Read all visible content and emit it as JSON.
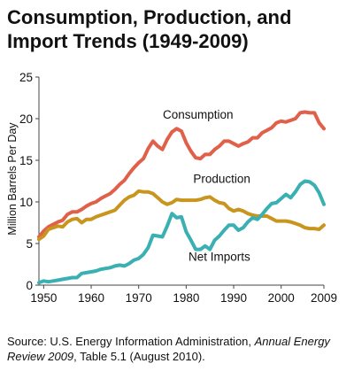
{
  "title_line1": "Consumption, Production, and",
  "title_line2": "Import Trends (1949-2009)",
  "source": {
    "prefix": "Source: U.S. Energy Information Administration, ",
    "publication": "Annual Energy Review 2009",
    "suffix": ", Table 5.1 (August 2010)."
  },
  "chart_data": {
    "type": "line",
    "title": "Consumption, Production, and Import Trends (1949-2009)",
    "xlabel": "",
    "ylabel": "Million Barrels Per Day",
    "xlim": [
      1949,
      2009
    ],
    "ylim": [
      0,
      25
    ],
    "x_ticks": [
      1950,
      1960,
      1970,
      1980,
      1990,
      2000,
      2009
    ],
    "y_ticks": [
      0,
      5,
      10,
      15,
      20,
      25
    ],
    "grid": false,
    "legend": "inline labels",
    "series": [
      {
        "name": "Consumption",
        "color": "#e0604a",
        "label_year": 1982.5,
        "label_value": 20,
        "points": [
          [
            1949,
            5.8
          ],
          [
            1950,
            6.5
          ],
          [
            1951,
            7.0
          ],
          [
            1952,
            7.3
          ],
          [
            1953,
            7.6
          ],
          [
            1954,
            7.8
          ],
          [
            1955,
            8.5
          ],
          [
            1956,
            8.8
          ],
          [
            1957,
            8.8
          ],
          [
            1958,
            9.1
          ],
          [
            1959,
            9.5
          ],
          [
            1960,
            9.8
          ],
          [
            1961,
            10.0
          ],
          [
            1962,
            10.4
          ],
          [
            1963,
            10.7
          ],
          [
            1964,
            11.0
          ],
          [
            1965,
            11.5
          ],
          [
            1966,
            12.1
          ],
          [
            1967,
            12.6
          ],
          [
            1968,
            13.4
          ],
          [
            1969,
            14.1
          ],
          [
            1970,
            14.7
          ],
          [
            1971,
            15.2
          ],
          [
            1972,
            16.4
          ],
          [
            1973,
            17.3
          ],
          [
            1974,
            16.7
          ],
          [
            1975,
            16.3
          ],
          [
            1976,
            17.5
          ],
          [
            1977,
            18.4
          ],
          [
            1978,
            18.8
          ],
          [
            1979,
            18.5
          ],
          [
            1980,
            17.1
          ],
          [
            1981,
            16.1
          ],
          [
            1982,
            15.3
          ],
          [
            1983,
            15.2
          ],
          [
            1984,
            15.7
          ],
          [
            1985,
            15.7
          ],
          [
            1986,
            16.3
          ],
          [
            1987,
            16.7
          ],
          [
            1988,
            17.3
          ],
          [
            1989,
            17.3
          ],
          [
            1990,
            17.0
          ],
          [
            1991,
            16.7
          ],
          [
            1992,
            17.0
          ],
          [
            1993,
            17.2
          ],
          [
            1994,
            17.7
          ],
          [
            1995,
            17.7
          ],
          [
            1996,
            18.3
          ],
          [
            1997,
            18.6
          ],
          [
            1998,
            18.9
          ],
          [
            1999,
            19.5
          ],
          [
            2000,
            19.7
          ],
          [
            2001,
            19.6
          ],
          [
            2002,
            19.8
          ],
          [
            2003,
            20.0
          ],
          [
            2004,
            20.7
          ],
          [
            2005,
            20.8
          ],
          [
            2006,
            20.7
          ],
          [
            2007,
            20.7
          ],
          [
            2008,
            19.5
          ],
          [
            2009,
            18.8
          ]
        ]
      },
      {
        "name": "Production",
        "color": "#c8961e",
        "label_year": 1987.5,
        "label_value": 12.3,
        "points": [
          [
            1949,
            5.5
          ],
          [
            1950,
            5.9
          ],
          [
            1951,
            6.7
          ],
          [
            1952,
            6.9
          ],
          [
            1953,
            7.1
          ],
          [
            1954,
            7.0
          ],
          [
            1955,
            7.6
          ],
          [
            1956,
            7.9
          ],
          [
            1957,
            8.0
          ],
          [
            1958,
            7.5
          ],
          [
            1959,
            7.9
          ],
          [
            1960,
            7.9
          ],
          [
            1961,
            8.2
          ],
          [
            1962,
            8.4
          ],
          [
            1963,
            8.6
          ],
          [
            1964,
            8.8
          ],
          [
            1965,
            9.0
          ],
          [
            1966,
            9.6
          ],
          [
            1967,
            10.2
          ],
          [
            1968,
            10.6
          ],
          [
            1969,
            10.8
          ],
          [
            1970,
            11.3
          ],
          [
            1971,
            11.2
          ],
          [
            1972,
            11.2
          ],
          [
            1973,
            11.0
          ],
          [
            1974,
            10.5
          ],
          [
            1975,
            10.0
          ],
          [
            1976,
            9.7
          ],
          [
            1977,
            9.9
          ],
          [
            1978,
            10.3
          ],
          [
            1979,
            10.2
          ],
          [
            1980,
            10.2
          ],
          [
            1981,
            10.2
          ],
          [
            1982,
            10.2
          ],
          [
            1983,
            10.3
          ],
          [
            1984,
            10.5
          ],
          [
            1985,
            10.6
          ],
          [
            1986,
            10.2
          ],
          [
            1987,
            9.9
          ],
          [
            1988,
            9.8
          ],
          [
            1989,
            9.2
          ],
          [
            1990,
            8.9
          ],
          [
            1991,
            9.1
          ],
          [
            1992,
            8.9
          ],
          [
            1993,
            8.6
          ],
          [
            1994,
            8.4
          ],
          [
            1995,
            8.3
          ],
          [
            1996,
            8.3
          ],
          [
            1997,
            8.3
          ],
          [
            1998,
            8.0
          ],
          [
            1999,
            7.7
          ],
          [
            2000,
            7.7
          ],
          [
            2001,
            7.7
          ],
          [
            2002,
            7.6
          ],
          [
            2003,
            7.4
          ],
          [
            2004,
            7.2
          ],
          [
            2005,
            6.9
          ],
          [
            2006,
            6.8
          ],
          [
            2007,
            6.8
          ],
          [
            2008,
            6.7
          ],
          [
            2009,
            7.2
          ]
        ]
      },
      {
        "name": "Net Imports",
        "color": "#3ab0b2",
        "label_year": 1987,
        "label_value": 2.9,
        "points": [
          [
            1949,
            0.3
          ],
          [
            1950,
            0.5
          ],
          [
            1951,
            0.4
          ],
          [
            1952,
            0.5
          ],
          [
            1953,
            0.6
          ],
          [
            1954,
            0.7
          ],
          [
            1955,
            0.8
          ],
          [
            1956,
            0.9
          ],
          [
            1957,
            0.9
          ],
          [
            1958,
            1.4
          ],
          [
            1959,
            1.5
          ],
          [
            1960,
            1.6
          ],
          [
            1961,
            1.7
          ],
          [
            1962,
            1.9
          ],
          [
            1963,
            2.0
          ],
          [
            1964,
            2.1
          ],
          [
            1965,
            2.3
          ],
          [
            1966,
            2.4
          ],
          [
            1967,
            2.3
          ],
          [
            1968,
            2.6
          ],
          [
            1969,
            3.0
          ],
          [
            1970,
            3.2
          ],
          [
            1971,
            3.7
          ],
          [
            1972,
            4.5
          ],
          [
            1973,
            6.0
          ],
          [
            1974,
            5.9
          ],
          [
            1975,
            5.8
          ],
          [
            1976,
            7.1
          ],
          [
            1977,
            8.6
          ],
          [
            1978,
            8.1
          ],
          [
            1979,
            8.2
          ],
          [
            1980,
            6.4
          ],
          [
            1981,
            5.4
          ],
          [
            1982,
            4.3
          ],
          [
            1983,
            4.3
          ],
          [
            1984,
            4.7
          ],
          [
            1985,
            4.3
          ],
          [
            1986,
            5.4
          ],
          [
            1987,
            5.9
          ],
          [
            1988,
            6.6
          ],
          [
            1989,
            7.2
          ],
          [
            1990,
            7.2
          ],
          [
            1991,
            6.6
          ],
          [
            1992,
            6.9
          ],
          [
            1993,
            7.6
          ],
          [
            1994,
            8.1
          ],
          [
            1995,
            7.9
          ],
          [
            1996,
            8.5
          ],
          [
            1997,
            9.2
          ],
          [
            1998,
            9.8
          ],
          [
            1999,
            9.9
          ],
          [
            2000,
            10.4
          ],
          [
            2001,
            10.9
          ],
          [
            2002,
            10.5
          ],
          [
            2003,
            11.2
          ],
          [
            2004,
            12.1
          ],
          [
            2005,
            12.5
          ],
          [
            2006,
            12.4
          ],
          [
            2007,
            12.0
          ],
          [
            2008,
            11.1
          ],
          [
            2009,
            9.7
          ]
        ]
      }
    ]
  }
}
